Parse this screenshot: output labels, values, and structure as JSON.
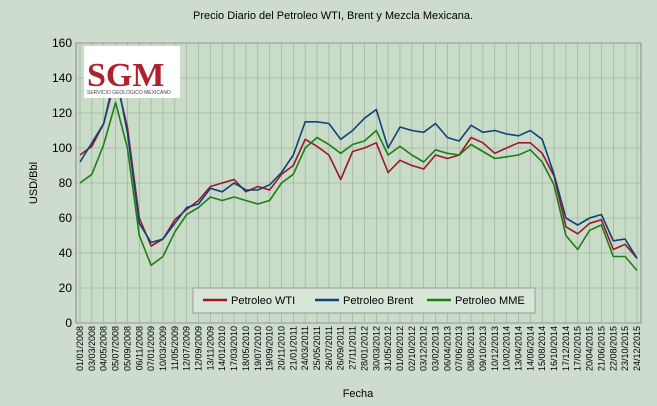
{
  "chart_data": {
    "type": "line",
    "title": "Precio Diario del Petroleo WTI, Brent y Mezcla Mexicana.",
    "xlabel": "Fecha",
    "ylabel": "USD/Bbl",
    "ylim": [
      0,
      160
    ],
    "yticks": [
      0,
      20,
      40,
      60,
      80,
      100,
      120,
      140,
      160
    ],
    "grid": true,
    "legend_position": "bottom-center",
    "logo": {
      "text": "SGM",
      "caption": "SERVICIO GEOLOGICO MEXICANO",
      "color": "#b0212e"
    },
    "x": [
      "01/01/2008",
      "03/03/2008",
      "04/05/2008",
      "05/07/2008",
      "05/09/2008",
      "06/11/2008",
      "07/01/2009",
      "10/03/2009",
      "11/05/2009",
      "12/07/2009",
      "12/09/2009",
      "13/11/2009",
      "14/01/2010",
      "17/03/2010",
      "18/05/2010",
      "19/07/2010",
      "19/09/2010",
      "20/11/2010",
      "21/01/2011",
      "24/03/2011",
      "25/05/2011",
      "26/07/2011",
      "26/09/2011",
      "27/11/2011",
      "28/01/2012",
      "30/03/2012",
      "31/05/2012",
      "01/08/2012",
      "02/10/2012",
      "03/12/2012",
      "03/02/2013",
      "06/04/2013",
      "07/06/2013",
      "08/08/2013",
      "09/10/2013",
      "10/12/2013",
      "10/02/2014",
      "13/04/2014",
      "14/06/2014",
      "15/08/2014",
      "16/10/2014",
      "17/12/2014",
      "17/02/2015",
      "20/04/2015",
      "21/06/2015",
      "22/08/2015",
      "23/10/2015",
      "24/12/2015"
    ],
    "series": [
      {
        "name": "Petroleo WTI",
        "color": "#a0162a",
        "values": [
          96,
          101,
          114,
          140,
          112,
          60,
          44,
          48,
          59,
          65,
          70,
          78,
          80,
          82,
          75,
          78,
          76,
          85,
          90,
          105,
          101,
          96,
          82,
          98,
          100,
          103,
          86,
          93,
          90,
          88,
          96,
          94,
          96,
          106,
          103,
          97,
          100,
          103,
          103,
          97,
          84,
          55,
          51,
          57,
          59,
          42,
          45,
          37
        ]
      },
      {
        "name": "Petroleo Brent",
        "color": "#10427a",
        "values": [
          92,
          103,
          114,
          143,
          109,
          57,
          46,
          48,
          57,
          66,
          68,
          77,
          75,
          80,
          76,
          76,
          79,
          86,
          96,
          115,
          115,
          114,
          105,
          110,
          117,
          122,
          100,
          112,
          110,
          109,
          114,
          106,
          104,
          113,
          109,
          110,
          108,
          107,
          110,
          105,
          85,
          60,
          56,
          60,
          62,
          47,
          48,
          37
        ]
      },
      {
        "name": "Petroleo MME",
        "color": "#1f7d16",
        "values": [
          80,
          85,
          102,
          126,
          100,
          50,
          33,
          38,
          52,
          62,
          66,
          72,
          70,
          72,
          70,
          68,
          70,
          80,
          85,
          100,
          106,
          102,
          97,
          102,
          104,
          110,
          96,
          101,
          96,
          92,
          99,
          97,
          96,
          102,
          98,
          94,
          95,
          96,
          99,
          92,
          79,
          50,
          42,
          53,
          56,
          38,
          38,
          30
        ]
      }
    ]
  }
}
